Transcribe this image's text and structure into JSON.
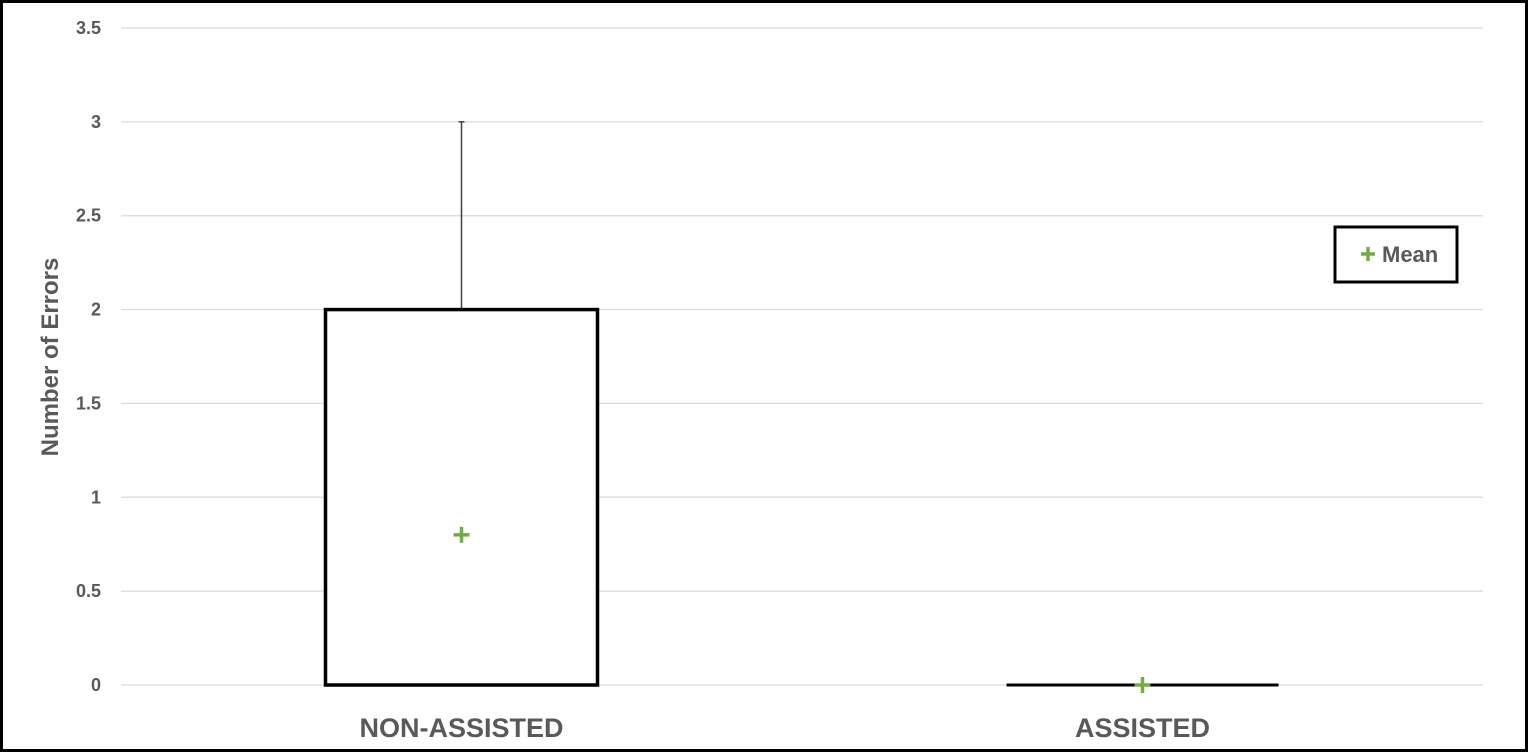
{
  "chart_data": {
    "type": "box",
    "title": "",
    "xlabel": "",
    "ylabel": "Number of Errors",
    "ylim": [
      0,
      3.5
    ],
    "yticks": [
      "0",
      "0.5",
      "1",
      "1.5",
      "2",
      "2.5",
      "3",
      "3.5"
    ],
    "grid": true,
    "legend": {
      "position": "right",
      "entries": [
        "Mean"
      ]
    },
    "categories": [
      "NON-ASSISTED",
      "ASSISTED"
    ],
    "boxes": [
      {
        "category": "NON-ASSISTED",
        "min": 0,
        "q1": 0,
        "median": 0,
        "q3": 2,
        "max": 3,
        "mean": 0.8
      },
      {
        "category": "ASSISTED",
        "min": 0,
        "q1": 0,
        "median": 0,
        "q3": 0,
        "max": 0,
        "mean": 0
      }
    ],
    "colors": {
      "mean_marker": "#70AD47",
      "box_border": "#000000",
      "grid": "#D9D9D9",
      "text": "#595959"
    }
  }
}
